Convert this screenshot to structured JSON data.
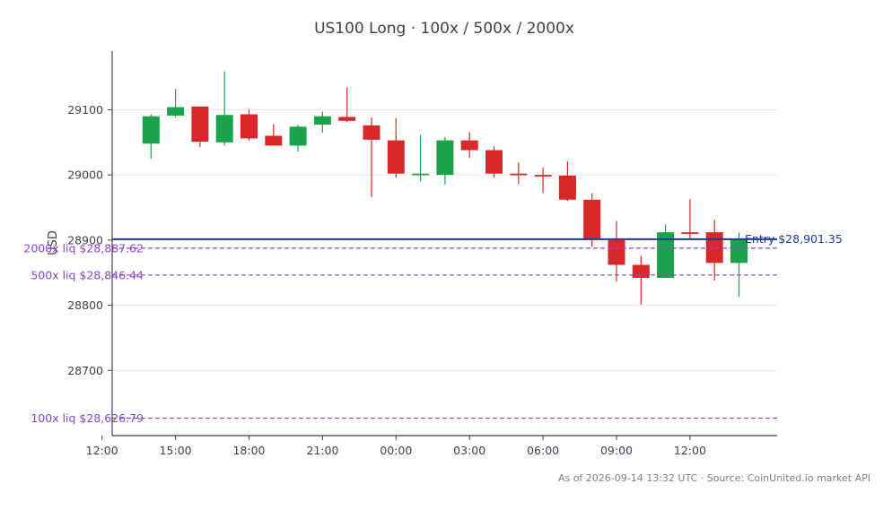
{
  "chart_data": {
    "type": "candlestick",
    "title": "US100 Long · 100x / 500x / 2000x",
    "xlabel": "",
    "ylabel": "USD",
    "ylim": [
      28600,
      29190
    ],
    "grid": true,
    "x_ticks": [
      "12:00",
      "15:00",
      "18:00",
      "21:00",
      "00:00",
      "03:00",
      "06:00",
      "09:00",
      "12:00"
    ],
    "y_ticks": [
      "28700",
      "28800",
      "28900",
      "29000",
      "29100"
    ],
    "colors": {
      "up": "#1aa34a",
      "down": "#d9282a",
      "entry": "#1f3a93",
      "liquidation": "#8e44c8"
    },
    "candles": [
      {
        "t": "13:00",
        "o": 29048,
        "h": 29093,
        "l": 29025,
        "c": 29090
      },
      {
        "t": "14:00",
        "o": 29091,
        "h": 29132,
        "l": 29088,
        "c": 29104
      },
      {
        "t": "15:00",
        "o": 29105,
        "h": 29105,
        "l": 29043,
        "c": 29051
      },
      {
        "t": "16:00",
        "o": 29050,
        "h": 29159,
        "l": 29045,
        "c": 29092
      },
      {
        "t": "17:00",
        "o": 29093,
        "h": 29100,
        "l": 29053,
        "c": 29056
      },
      {
        "t": "18:00",
        "o": 29060,
        "h": 29078,
        "l": 29045,
        "c": 29045
      },
      {
        "t": "19:00",
        "o": 29045,
        "h": 29077,
        "l": 29036,
        "c": 29074
      },
      {
        "t": "20:00",
        "o": 29077,
        "h": 29097,
        "l": 29065,
        "c": 29090
      },
      {
        "t": "21:00",
        "o": 29089,
        "h": 29134,
        "l": 29081,
        "c": 29083
      },
      {
        "t": "22:00",
        "o": 29076,
        "h": 29088,
        "l": 28966,
        "c": 29054
      },
      {
        "t": "23:00",
        "o": 29053,
        "h": 29087,
        "l": 28996,
        "c": 29002
      },
      {
        "t": "00:00",
        "o": 29001,
        "h": 29061,
        "l": 28990,
        "c": 29002
      },
      {
        "t": "01:00",
        "o": 29000,
        "h": 29058,
        "l": 28985,
        "c": 29053
      },
      {
        "t": "02:00",
        "o": 29053,
        "h": 29066,
        "l": 29026,
        "c": 29038
      },
      {
        "t": "03:00",
        "o": 29038,
        "h": 29044,
        "l": 28996,
        "c": 29002
      },
      {
        "t": "04:00",
        "o": 29002,
        "h": 29019,
        "l": 28986,
        "c": 29001
      },
      {
        "t": "05:00",
        "o": 29000,
        "h": 29011,
        "l": 28972,
        "c": 28999
      },
      {
        "t": "06:00",
        "o": 28999,
        "h": 29021,
        "l": 28960,
        "c": 28962
      },
      {
        "t": "07:00",
        "o": 28962,
        "h": 28972,
        "l": 28890,
        "c": 28902
      },
      {
        "t": "08:00",
        "o": 28900,
        "h": 28929,
        "l": 28836,
        "c": 28862
      },
      {
        "t": "09:00",
        "o": 28862,
        "h": 28876,
        "l": 28801,
        "c": 28842
      },
      {
        "t": "10:00",
        "o": 28842,
        "h": 28924,
        "l": 28842,
        "c": 28912
      },
      {
        "t": "11:00",
        "o": 28912,
        "h": 28963,
        "l": 28900,
        "c": 28911
      },
      {
        "t": "12:00",
        "o": 28912,
        "h": 28931,
        "l": 28838,
        "c": 28865
      },
      {
        "t": "13:00",
        "o": 28865,
        "h": 28912,
        "l": 28813,
        "c": 28902
      }
    ],
    "reference_lines": [
      {
        "name": "entry",
        "label": "Entry $28,901.35",
        "value": 28901.35,
        "style": "solid"
      },
      {
        "name": "liq-2000x",
        "label": "2000x liq $28,887.62",
        "value": 28887.62,
        "style": "dashed"
      },
      {
        "name": "liq-500x",
        "label": "500x liq $28,846.44",
        "value": 28846.44,
        "style": "dashed"
      },
      {
        "name": "liq-100x",
        "label": "100x liq $28,626.79",
        "value": 28626.79,
        "style": "dashed"
      }
    ]
  },
  "footer": "As of 2026-09-14 13:32 UTC · Source: CoinUnited.io market API"
}
